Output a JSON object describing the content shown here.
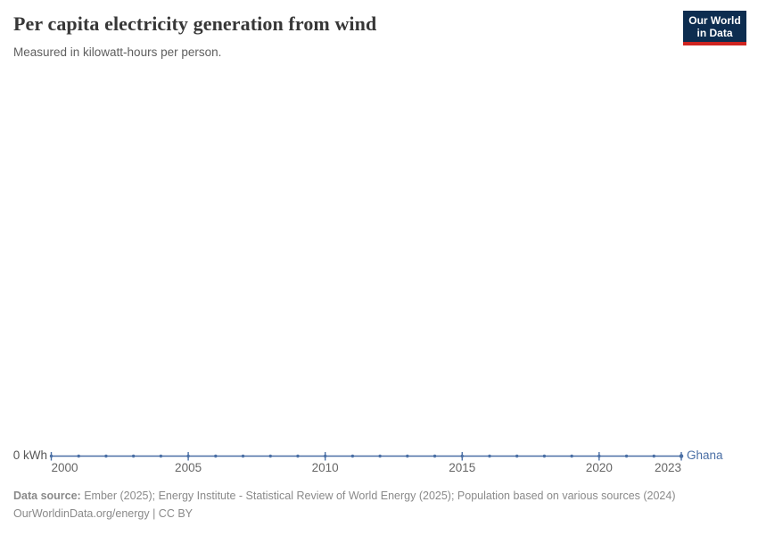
{
  "header": {
    "title": "Per capita electricity generation from wind",
    "subtitle": "Measured in kilowatt-hours per person.",
    "logo": {
      "line1": "Our World",
      "line2": "in Data"
    }
  },
  "chart_data": {
    "type": "line",
    "title": "Per capita electricity generation from wind",
    "subtitle": "Measured in kilowatt-hours per person.",
    "x": [
      2000,
      2001,
      2002,
      2003,
      2004,
      2005,
      2006,
      2007,
      2008,
      2009,
      2010,
      2011,
      2012,
      2013,
      2014,
      2015,
      2016,
      2017,
      2018,
      2019,
      2020,
      2021,
      2022,
      2023
    ],
    "series": [
      {
        "name": "Ghana",
        "color": "#4a6fa5",
        "values": [
          0,
          0,
          0,
          0,
          0,
          0,
          0,
          0,
          0,
          0,
          0,
          0,
          0,
          0,
          0,
          0,
          0,
          0,
          0,
          0,
          0,
          0,
          0,
          0
        ]
      }
    ],
    "x_tick_labels": [
      "2000",
      "2005",
      "2010",
      "2015",
      "2020",
      "2023"
    ],
    "x_ticks": [
      2000,
      2005,
      2010,
      2015,
      2020,
      2023
    ],
    "y_tick_labels": [
      "0 kWh"
    ],
    "xlim": [
      2000,
      2023
    ],
    "ylim": [
      0,
      0
    ],
    "grid": false,
    "legend_position": "end-of-line",
    "entity_label": "Ghana",
    "unit": "kWh"
  },
  "footer": {
    "source_label": "Data source:",
    "source_text": " Ember (2025); Energy Institute - Statistical Review of World Energy (2025); Population based on various sources (2024)",
    "license_line": "OurWorldinData.org/energy | CC BY"
  },
  "colors": {
    "series_blue": "#4a6fa5",
    "logo_navy": "#0d2d50",
    "logo_red": "#cf2420",
    "title_text": "#373737",
    "muted_text": "#8a8a8a"
  }
}
